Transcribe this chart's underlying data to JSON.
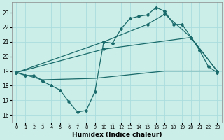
{
  "xlabel": "Humidex (Indice chaleur)",
  "xlim": [
    -0.5,
    23.5
  ],
  "ylim": [
    15.5,
    23.7
  ],
  "xticks": [
    0,
    1,
    2,
    3,
    4,
    5,
    6,
    7,
    8,
    9,
    10,
    11,
    12,
    13,
    14,
    15,
    16,
    17,
    18,
    19,
    20,
    21,
    22,
    23
  ],
  "yticks": [
    16,
    17,
    18,
    19,
    20,
    21,
    22,
    23
  ],
  "bg_color": "#cceee8",
  "line_color": "#1a6b6b",
  "grid_color": "#aadddd",
  "line1_x": [
    0,
    1,
    2,
    3,
    4,
    5,
    6,
    7,
    8,
    9,
    10,
    11,
    12,
    13,
    14,
    15,
    16,
    17,
    18,
    19,
    20,
    21,
    22,
    23
  ],
  "line1_y": [
    18.9,
    18.7,
    18.7,
    18.3,
    18.0,
    17.7,
    16.9,
    16.2,
    16.3,
    17.6,
    21.0,
    20.9,
    21.9,
    22.6,
    22.75,
    22.85,
    23.35,
    23.1,
    22.2,
    22.2,
    21.3,
    20.4,
    19.3,
    18.9
  ],
  "line2_x": [
    0,
    10,
    15,
    17,
    20,
    23
  ],
  "line2_y": [
    18.9,
    21.0,
    22.2,
    22.9,
    21.3,
    19.0
  ],
  "line3_x": [
    0,
    10,
    20,
    23
  ],
  "line3_y": [
    18.9,
    20.5,
    21.3,
    19.0
  ],
  "line4_x": [
    0,
    3,
    9,
    17,
    23
  ],
  "line4_y": [
    18.9,
    18.4,
    18.5,
    19.0,
    19.0
  ]
}
